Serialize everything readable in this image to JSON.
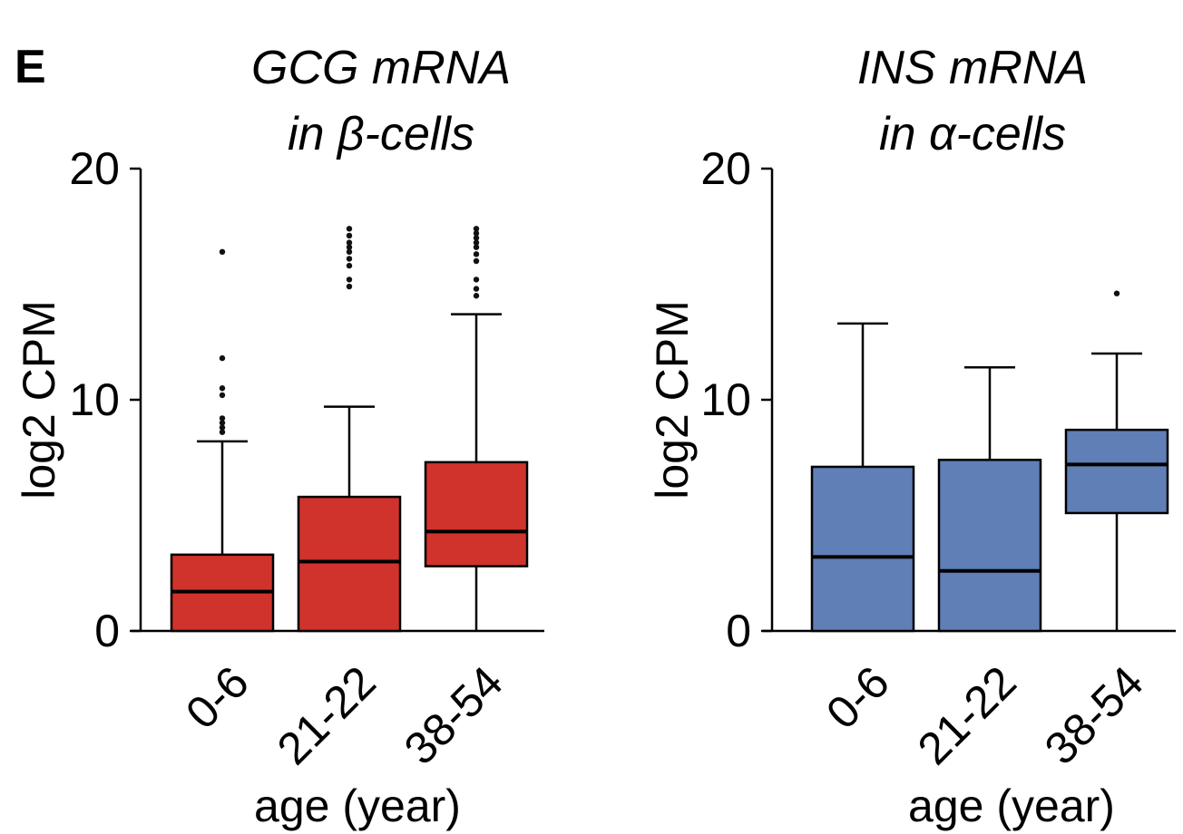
{
  "panel_label": "E",
  "colors": {
    "left": "#d0332b",
    "right": "#607fb6",
    "stroke": "#000000"
  },
  "chart_data": [
    {
      "type": "box",
      "title_lines": [
        "GCG mRNA",
        "in β-cells"
      ],
      "ylabel": "log2 CPM",
      "xlabel": "age (year)",
      "ylim": [
        0,
        20
      ],
      "yticks": [
        0,
        10,
        20
      ],
      "fill": "#d0332b",
      "categories": [
        "0-6",
        "21-22",
        "38-54"
      ],
      "boxes": [
        {
          "whisker_low": 0,
          "q1": 0,
          "median": 1.7,
          "q3": 3.3,
          "whisker_high": 8.2,
          "outliers": [
            8.6,
            8.8,
            9.0,
            9.2,
            10.2,
            10.5,
            11.8,
            16.4
          ]
        },
        {
          "whisker_low": 0,
          "q1": 0,
          "median": 3.0,
          "q3": 5.8,
          "whisker_high": 9.7,
          "outliers": [
            14.9,
            15.2,
            15.8,
            16.1,
            16.4,
            16.6,
            16.8,
            17.1,
            17.4
          ]
        },
        {
          "whisker_low": 0,
          "q1": 2.8,
          "median": 4.3,
          "q3": 7.3,
          "whisker_high": 13.7,
          "outliers": [
            14.5,
            14.8,
            15.2,
            16.0,
            16.3,
            16.6,
            16.8,
            17.0,
            17.2,
            17.4
          ]
        }
      ]
    },
    {
      "type": "box",
      "title_lines": [
        "INS mRNA",
        "in α-cells"
      ],
      "ylabel": "log2 CPM",
      "xlabel": "age (year)",
      "ylim": [
        0,
        20
      ],
      "yticks": [
        0,
        10,
        20
      ],
      "fill": "#607fb6",
      "categories": [
        "0-6",
        "21-22",
        "38-54"
      ],
      "boxes": [
        {
          "whisker_low": 0,
          "q1": 0,
          "median": 3.2,
          "q3": 7.1,
          "whisker_high": 13.3,
          "outliers": []
        },
        {
          "whisker_low": 0,
          "q1": 0,
          "median": 2.6,
          "q3": 7.4,
          "whisker_high": 11.4,
          "outliers": []
        },
        {
          "whisker_low": 0,
          "q1": 5.1,
          "median": 7.2,
          "q3": 8.7,
          "whisker_high": 12.0,
          "outliers": [
            14.6
          ]
        }
      ]
    }
  ]
}
